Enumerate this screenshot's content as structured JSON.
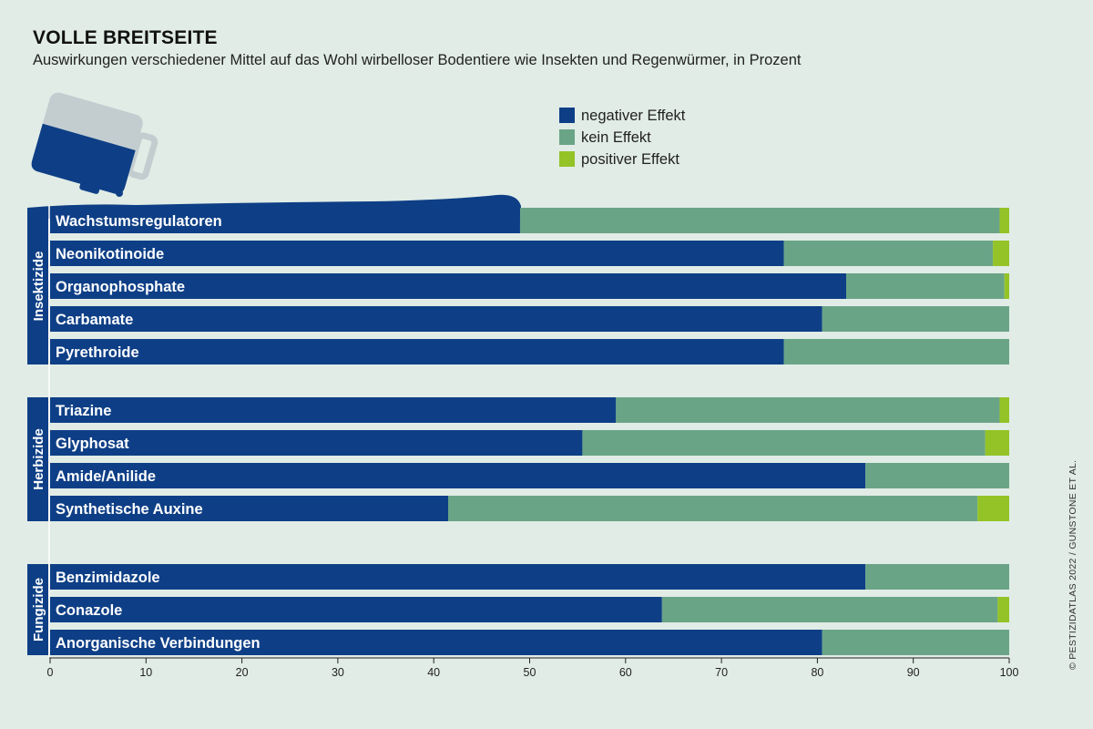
{
  "header": {
    "title": "VOLLE BREITSEITE",
    "subtitle": "Auswirkungen verschiedener Mittel auf das Wohl wirbelloser Bodentiere wie Insekten und Regenwürmer, in Prozent"
  },
  "source": "© PESTIZIDATLAS 2022 / GUNSTONE ET AL.",
  "colors": {
    "negative": "#0e3f86",
    "neutral": "#6aa487",
    "positive": "#93c326",
    "background": "#e1ece6",
    "group_label_text": "#ffffff"
  },
  "chart_data": {
    "type": "bar",
    "orientation": "horizontal",
    "stacked": true,
    "title": "VOLLE BREITSEITE",
    "subtitle": "Auswirkungen verschiedener Mittel auf das Wohl wirbelloser Bodentiere wie Insekten und Regenwürmer, in Prozent",
    "xlabel": "",
    "ylabel": "",
    "xlim": [
      0,
      100
    ],
    "xticks": [
      0,
      10,
      20,
      30,
      40,
      50,
      60,
      70,
      80,
      90,
      100
    ],
    "legend": {
      "position": "top-center",
      "entries": [
        "negativer Effekt",
        "kein Effekt",
        "positiver Effekt"
      ]
    },
    "groups": [
      {
        "name": "Insektizide",
        "categories": [
          "Wachstumsregulatoren",
          "Neonikotinoide",
          "Organophosphate",
          "Carbamate",
          "Pyrethroide"
        ],
        "series": [
          {
            "name": "negativer Effekt",
            "values": [
              49,
              76.5,
              83,
              80.5,
              76.5
            ]
          },
          {
            "name": "kein Effekt",
            "values": [
              50,
              21.8,
              16.5,
              19.5,
              23.5
            ]
          },
          {
            "name": "positiver Effekt",
            "values": [
              1,
              1.7,
              0.5,
              0,
              0
            ]
          }
        ]
      },
      {
        "name": "Herbizide",
        "categories": [
          "Triazine",
          "Glyphosat",
          "Amide/Anilide",
          "Synthetische Auxine"
        ],
        "series": [
          {
            "name": "negativer Effekt",
            "values": [
              59,
              55.5,
              85,
              41.5
            ]
          },
          {
            "name": "kein Effekt",
            "values": [
              40,
              42,
              15,
              55.2
            ]
          },
          {
            "name": "positiver Effekt",
            "values": [
              1,
              2.5,
              0,
              3.3
            ]
          }
        ]
      },
      {
        "name": "Fungizide",
        "categories": [
          "Benzimidazole",
          "Conazole",
          "Anorganische Verbindungen"
        ],
        "series": [
          {
            "name": "negativer Effekt",
            "values": [
              85,
              63.8,
              80.5
            ]
          },
          {
            "name": "kein Effekt",
            "values": [
              15,
              35,
              19.5
            ]
          },
          {
            "name": "positiver Effekt",
            "values": [
              0,
              1.2,
              0
            ]
          }
        ]
      }
    ]
  }
}
